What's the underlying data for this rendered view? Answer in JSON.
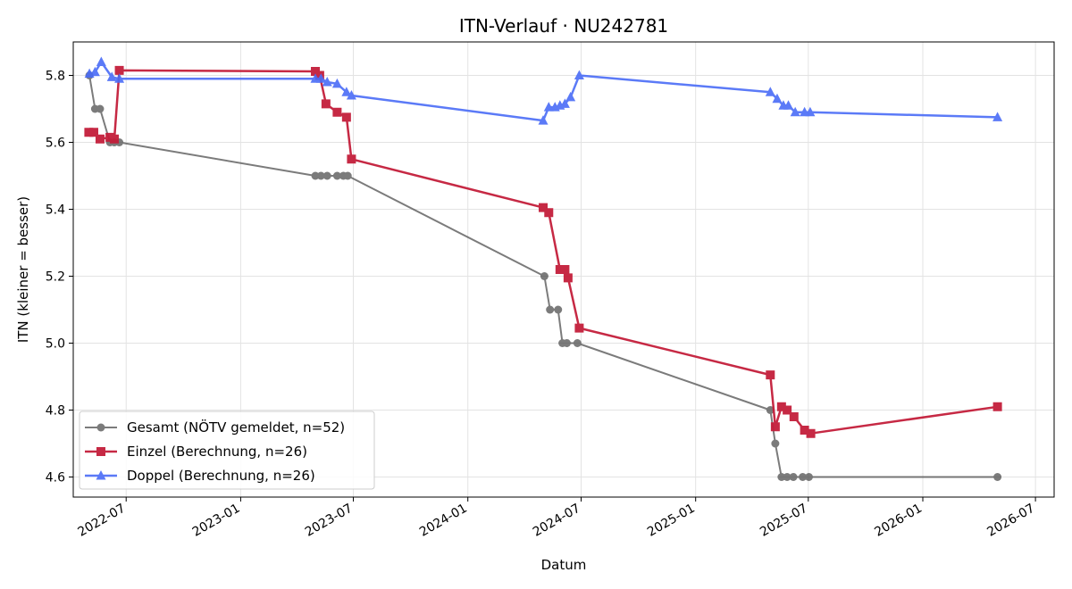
{
  "chart_data": {
    "type": "line",
    "title": "ITN-Verlauf · NU242781",
    "xlabel": "Datum",
    "ylabel": "ITN  (kleiner = besser)",
    "x_range": [
      "2022-04-07",
      "2026-07-31"
    ],
    "ylim": [
      4.54,
      5.9
    ],
    "x_ticks": [
      "2022-07-01",
      "2023-01-01",
      "2023-07-01",
      "2024-01-01",
      "2024-07-01",
      "2025-01-01",
      "2025-07-01",
      "2026-01-01",
      "2026-07-01"
    ],
    "x_tick_labels": [
      "2022-07",
      "2023-01",
      "2023-07",
      "2024-01",
      "2024-07",
      "2025-01",
      "2025-07",
      "2026-01",
      "2026-07"
    ],
    "y_ticks": [
      4.6,
      4.8,
      5.0,
      5.2,
      5.4,
      5.6,
      5.8
    ],
    "y_tick_labels": [
      "4.6",
      "4.8",
      "5.0",
      "5.2",
      "5.4",
      "5.6",
      "5.8"
    ],
    "grid": true,
    "legend_position": "lower-left",
    "series": [
      {
        "name": "Gesamt (NÖTV gemeldet, n=52)",
        "color": "#444444",
        "marker": "circle",
        "x": [
          "2022-05-03",
          "2022-05-12",
          "2022-05-20",
          "2022-06-05",
          "2022-06-12",
          "2022-06-20",
          "2023-05-01",
          "2023-05-10",
          "2023-05-20",
          "2023-06-05",
          "2023-06-15",
          "2023-06-22",
          "2024-05-03",
          "2024-05-12",
          "2024-05-25",
          "2024-06-01",
          "2024-06-08",
          "2024-06-25",
          "2025-05-01",
          "2025-05-09",
          "2025-05-19",
          "2025-05-28",
          "2025-06-07",
          "2025-06-22",
          "2025-07-02",
          "2026-05-01"
        ],
        "y": [
          5.8,
          5.7,
          5.7,
          5.6,
          5.6,
          5.6,
          5.5,
          5.5,
          5.5,
          5.5,
          5.5,
          5.5,
          5.2,
          5.1,
          5.1,
          5.0,
          5.0,
          5.0,
          4.8,
          4.7,
          4.6,
          4.6,
          4.6,
          4.6,
          4.6,
          4.6
        ]
      },
      {
        "name": "Einzel (Berechnung, n=26)",
        "color": "#c41e3a",
        "marker": "square",
        "x": [
          "2022-05-02",
          "2022-05-10",
          "2022-05-20",
          "2022-06-05",
          "2022-06-12",
          "2022-06-20",
          "2023-05-01",
          "2023-05-08",
          "2023-05-18",
          "2023-06-05",
          "2023-06-20",
          "2023-06-28",
          "2024-05-01",
          "2024-05-10",
          "2024-05-28",
          "2024-06-05",
          "2024-06-10",
          "2024-06-28",
          "2025-05-01",
          "2025-05-09",
          "2025-05-19",
          "2025-05-28",
          "2025-06-08",
          "2025-06-25",
          "2025-07-05",
          "2026-05-01"
        ],
        "y": [
          5.63,
          5.63,
          5.61,
          5.615,
          5.61,
          5.815,
          5.812,
          5.8,
          5.715,
          5.69,
          5.675,
          5.55,
          5.405,
          5.39,
          5.22,
          5.22,
          5.195,
          5.045,
          4.905,
          4.75,
          4.81,
          4.8,
          4.78,
          4.74,
          4.73,
          4.81
        ]
      },
      {
        "name": "Doppel (Berechnung, n=26)",
        "color": "#4a6cf7",
        "marker": "triangle",
        "x": [
          "2022-05-03",
          "2022-05-12",
          "2022-05-22",
          "2022-06-08",
          "2022-06-20",
          "2023-05-01",
          "2023-05-10",
          "2023-05-20",
          "2023-06-05",
          "2023-06-20",
          "2023-06-28",
          "2024-05-01",
          "2024-05-10",
          "2024-05-20",
          "2024-05-28",
          "2024-06-05",
          "2024-06-14",
          "2024-06-28",
          "2025-05-01",
          "2025-05-12",
          "2025-05-22",
          "2025-05-30",
          "2025-06-10",
          "2025-06-25",
          "2025-07-04",
          "2026-05-01"
        ],
        "y": [
          5.805,
          5.81,
          5.84,
          5.795,
          5.79,
          5.79,
          5.79,
          5.78,
          5.775,
          5.75,
          5.74,
          5.665,
          5.705,
          5.705,
          5.71,
          5.715,
          5.735,
          5.8,
          5.75,
          5.73,
          5.71,
          5.71,
          5.69,
          5.69,
          5.69,
          5.675
        ]
      }
    ]
  }
}
